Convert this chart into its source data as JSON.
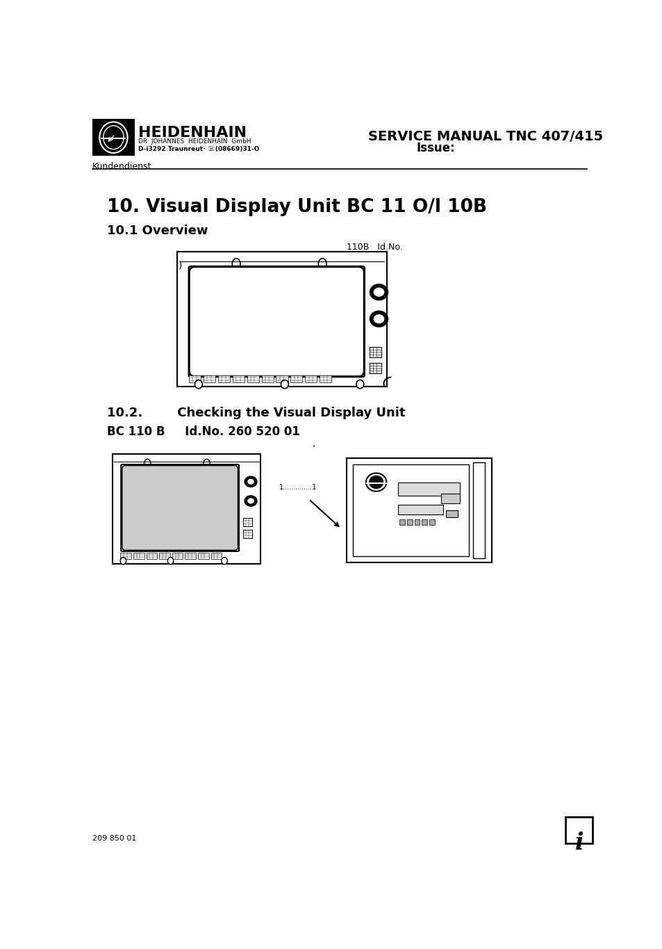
{
  "page_bg": "#ffffff",
  "logo_text_main": "HEIDENHAIN",
  "logo_text_sub1": "DR  JOHANNES  HEIDENHAIN  GmbH",
  "logo_text_sub2": "D-i3292 Traunreut· ☏(08669)31-O",
  "service_manual_line1": "SERVICE MANUAL TNC 407/415",
  "service_manual_line2": "Issue:",
  "kundendienst": "Kundendienst",
  "title_main": "10. Visual Display Unit BC 11 O/l 10B",
  "section_101": "10.1 Overview",
  "label_110b": "110B   Id.No.",
  "section_102": "10.2.        Checking the Visual Display Unit",
  "label_bc110b": "BC 110 B     Id.No. 260 520 01",
  "footer_text": "209 850 01",
  "info_symbol": "i",
  "dot_label": "ʼ"
}
